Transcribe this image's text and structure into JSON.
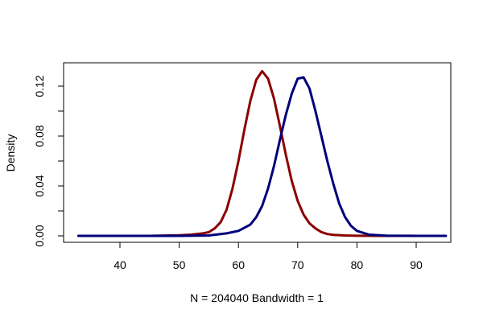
{
  "chart_data": {
    "type": "line",
    "title": "",
    "xlabel": "N = 204040   Bandwidth = 1",
    "ylabel": "Density",
    "xlim": [
      33,
      95
    ],
    "ylim": [
      0,
      0.13
    ],
    "x_ticks": [
      40,
      50,
      60,
      70,
      80,
      90
    ],
    "y_ticks": [
      0.0,
      0.04,
      0.08,
      0.12
    ],
    "y_tick_labels": [
      "0.00",
      "0.04",
      "0.08",
      "0.12"
    ],
    "y_minor_ticks": [
      0.02,
      0.06,
      0.1
    ],
    "grid": false,
    "legend": "none",
    "series": [
      {
        "color": "#8b0000",
        "x": [
          33,
          40,
          45,
          50,
          52,
          54,
          55,
          56,
          57,
          58,
          59,
          60,
          61,
          62,
          63,
          64,
          65,
          66,
          67,
          68,
          69,
          70,
          71,
          72,
          73,
          74,
          75,
          76,
          78,
          80,
          85,
          90,
          95
        ],
        "y": [
          0,
          0,
          0,
          0.0005,
          0.001,
          0.002,
          0.003,
          0.006,
          0.011,
          0.021,
          0.038,
          0.06,
          0.085,
          0.108,
          0.125,
          0.132,
          0.126,
          0.11,
          0.088,
          0.065,
          0.044,
          0.028,
          0.017,
          0.01,
          0.006,
          0.003,
          0.0015,
          0.0008,
          0.0003,
          0.0001,
          0,
          0,
          0
        ]
      },
      {
        "color": "#00007a",
        "x": [
          33,
          40,
          50,
          55,
          58,
          60,
          62,
          63,
          64,
          65,
          66,
          67,
          68,
          69,
          70,
          71,
          72,
          73,
          74,
          75,
          76,
          77,
          78,
          79,
          80,
          82,
          85,
          90,
          95
        ],
        "y": [
          0,
          0,
          0,
          0.0003,
          0.002,
          0.004,
          0.009,
          0.015,
          0.024,
          0.038,
          0.056,
          0.077,
          0.097,
          0.114,
          0.126,
          0.127,
          0.118,
          0.1,
          0.08,
          0.06,
          0.042,
          0.026,
          0.015,
          0.008,
          0.004,
          0.001,
          0.0002,
          0,
          0
        ]
      }
    ]
  }
}
